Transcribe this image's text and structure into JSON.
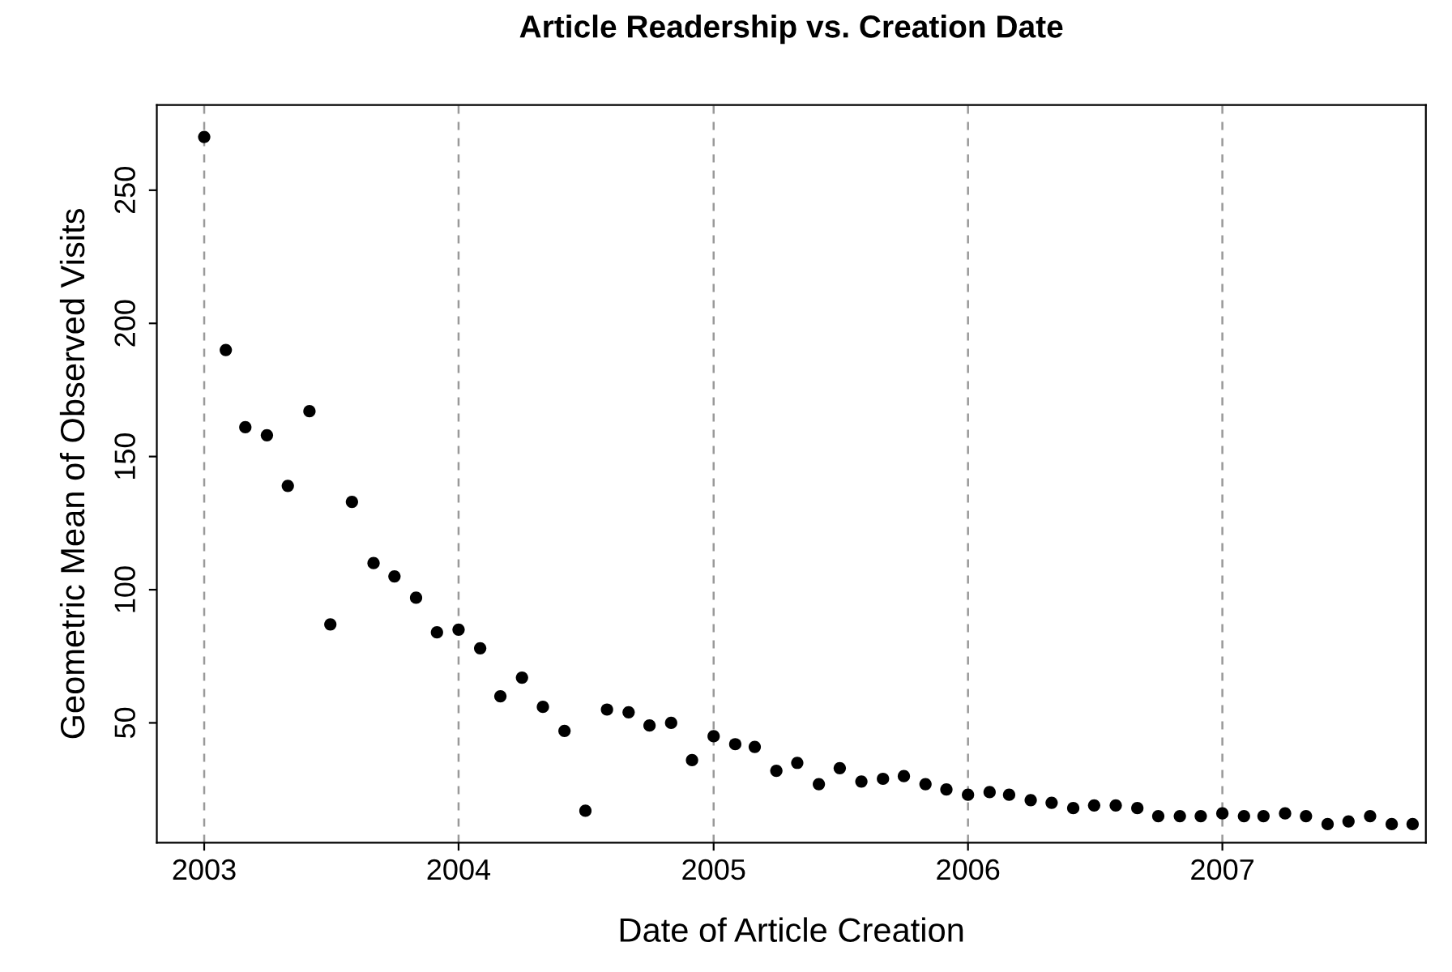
{
  "chart_data": {
    "type": "scatter",
    "title": "Article Readership vs. Creation Date",
    "xlabel": "Date of Article Creation",
    "ylabel": "Geometric Mean of Observed Visits",
    "x": [
      "2003-01",
      "2003-02",
      "2003-03",
      "2003-04",
      "2003-05",
      "2003-06",
      "2003-07",
      "2003-08",
      "2003-09",
      "2003-10",
      "2003-11",
      "2003-12",
      "2004-01",
      "2004-02",
      "2004-03",
      "2004-04",
      "2004-05",
      "2004-06",
      "2004-07",
      "2004-08",
      "2004-09",
      "2004-10",
      "2004-11",
      "2004-12",
      "2005-01",
      "2005-02",
      "2005-03",
      "2005-04",
      "2005-05",
      "2005-06",
      "2005-07",
      "2005-08",
      "2005-09",
      "2005-10",
      "2005-11",
      "2005-12",
      "2006-01",
      "2006-02",
      "2006-03",
      "2006-04",
      "2006-05",
      "2006-06",
      "2006-07",
      "2006-08",
      "2006-09",
      "2006-10",
      "2006-11",
      "2006-12",
      "2007-01",
      "2007-02",
      "2007-03",
      "2007-04",
      "2007-05",
      "2007-06",
      "2007-07",
      "2007-08",
      "2007-09",
      "2007-10"
    ],
    "values": [
      270,
      190,
      161,
      158,
      139,
      167,
      87,
      133,
      110,
      105,
      97,
      84,
      85,
      78,
      60,
      67,
      56,
      47,
      17,
      55,
      54,
      49,
      50,
      36,
      45,
      42,
      41,
      32,
      35,
      27,
      33,
      28,
      29,
      30,
      27,
      25,
      23,
      24,
      23,
      21,
      20,
      18,
      19,
      19,
      18,
      15,
      15,
      15,
      16,
      15,
      15,
      16,
      15,
      12,
      13,
      15,
      12,
      12
    ],
    "color": "#000000",
    "marker": "circle",
    "xlim": [
      "2002-10-25",
      "2007-10-20"
    ],
    "xticks": [
      {
        "value": "2003-01-01",
        "label": "2003"
      },
      {
        "value": "2004-01-01",
        "label": "2004"
      },
      {
        "value": "2005-01-01",
        "label": "2005"
      },
      {
        "value": "2006-01-01",
        "label": "2006"
      },
      {
        "value": "2007-01-01",
        "label": "2007"
      }
    ],
    "ylim": [
      5,
      282
    ],
    "yticks": [
      50,
      100,
      150,
      200,
      250
    ],
    "grid": "x"
  }
}
